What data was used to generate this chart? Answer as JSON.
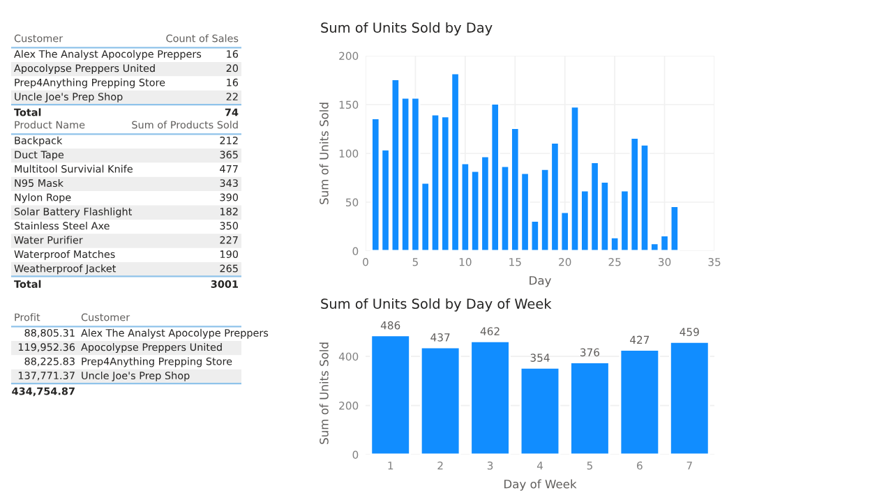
{
  "chart_data": [
    {
      "type": "other",
      "xlabel": "Customer",
      "ylabel": "Count of Sales",
      "categories": [
        "Alex The Analyst Apocolype Preppers",
        "Apocolypse Preppers United",
        "Prep4Anything Prepping Store",
        "Uncle Joe's Prep Shop"
      ],
      "values": [
        16,
        20,
        16,
        22
      ],
      "data_labels": true,
      "annotations": [
        "Total",
        "74"
      ]
    },
    {
      "type": "other",
      "xlabel": "Product Name",
      "ylabel": "Sum of Products Sold",
      "categories": [
        "Backpack",
        "Duct Tape",
        "Multitool Survivial Knife",
        "N95 Mask",
        "Nylon Rope",
        "Solar Battery Flashlight",
        "Stainless Steel Axe",
        "Water Purifier",
        "Waterproof Matches",
        "Weatherproof Jacket"
      ],
      "values": [
        212,
        365,
        477,
        343,
        390,
        182,
        350,
        227,
        190,
        265
      ],
      "data_labels": true,
      "annotations": [
        "Total",
        "3001"
      ]
    },
    {
      "type": "other",
      "xlabel": "Customer",
      "ylabel": "Profit",
      "categories": [
        "Alex The Analyst Apocolype Preppers",
        "Apocolypse Preppers United",
        "Prep4Anything Prepping Store",
        "Uncle Joe's Prep Shop"
      ],
      "values": [
        88805.31,
        119952.36,
        88225.83,
        137771.37
      ],
      "value_labels": [
        "88,805.31",
        "119,952.36",
        "88,225.83",
        "137,771.37"
      ],
      "annotations": [
        "434,754.87"
      ]
    },
    {
      "type": "bar",
      "title": "Sum of Units Sold by Day",
      "xlabel": "Day",
      "ylabel": "Sum of Units Sold",
      "x": [
        1,
        2,
        3,
        4,
        5,
        6,
        7,
        8,
        9,
        10,
        11,
        12,
        13,
        14,
        15,
        16,
        17,
        18,
        19,
        20,
        21,
        22,
        23,
        24,
        25,
        26,
        27,
        28,
        29,
        30,
        31
      ],
      "values": [
        136,
        104,
        176,
        157,
        157,
        70,
        140,
        138,
        182,
        90,
        82,
        97,
        151,
        87,
        126,
        80,
        31,
        84,
        111,
        40,
        148,
        62,
        91,
        71,
        14,
        62,
        116,
        109,
        8,
        16,
        46
      ],
      "color": "#118dff",
      "xlim": [
        0,
        35
      ],
      "xticks": [
        0,
        5,
        10,
        15,
        20,
        25,
        30,
        35
      ],
      "ylim": [
        0,
        200
      ],
      "yticks": [
        0,
        50,
        100,
        150,
        200
      ],
      "grid": true
    },
    {
      "type": "bar",
      "title": "Sum of Units Sold by Day of Week",
      "xlabel": "Day of Week",
      "ylabel": "Sum of Units Sold",
      "categories": [
        "1",
        "2",
        "3",
        "4",
        "5",
        "6",
        "7"
      ],
      "values": [
        486,
        437,
        462,
        354,
        376,
        427,
        459
      ],
      "color": "#118dff",
      "ylim": [
        0,
        500
      ],
      "yticks": [
        0,
        200,
        400
      ],
      "grid": "y",
      "data_labels": true
    }
  ]
}
